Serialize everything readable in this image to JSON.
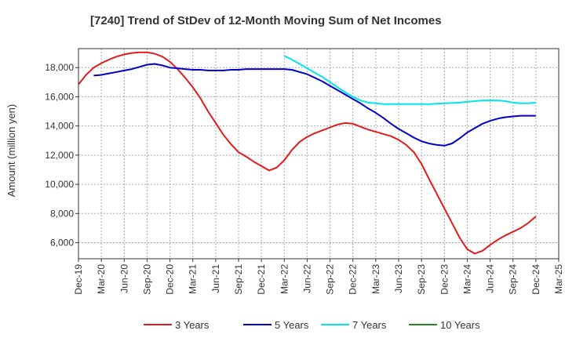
{
  "chart_data": {
    "type": "line",
    "title": "[7240]  Trend of StDev of 12-Month Moving Sum of Net Incomes",
    "ylabel": "Amount (million yen)",
    "xlabel": "",
    "ylim": [
      4900,
      19300
    ],
    "yticks": [
      6000,
      8000,
      10000,
      12000,
      14000,
      16000,
      18000
    ],
    "ytick_labels": [
      "6,000",
      "8,000",
      "10,000",
      "12,000",
      "14,000",
      "16,000",
      "18,000"
    ],
    "x_tick_labels": [
      "Dec-19",
      "Mar-20",
      "Jun-20",
      "Sep-20",
      "Dec-20",
      "Mar-21",
      "Jun-21",
      "Sep-21",
      "Dec-21",
      "Mar-22",
      "Jun-22",
      "Sep-22",
      "Dec-22",
      "Mar-23",
      "Jun-23",
      "Sep-23",
      "Dec-23",
      "Mar-24",
      "Jun-24",
      "Sep-24",
      "Dec-24",
      "Mar-25"
    ],
    "grid": true,
    "legend_position": "bottom",
    "series": [
      {
        "name": "3 Years",
        "color": "#e31a1c",
        "x": [
          "Dec-19",
          "Jan-20",
          "Feb-20",
          "Mar-20",
          "Apr-20",
          "May-20",
          "Jun-20",
          "Jul-20",
          "Aug-20",
          "Sep-20",
          "Oct-20",
          "Nov-20",
          "Dec-20",
          "Jan-21",
          "Feb-21",
          "Mar-21",
          "Apr-21",
          "May-21",
          "Jun-21",
          "Jul-21",
          "Aug-21",
          "Sep-21",
          "Oct-21",
          "Nov-21",
          "Dec-21",
          "Jan-22",
          "Feb-22",
          "Mar-22",
          "Apr-22",
          "May-22",
          "Jun-22",
          "Jul-22",
          "Aug-22",
          "Sep-22",
          "Oct-22",
          "Nov-22",
          "Dec-22",
          "Jan-23",
          "Feb-23",
          "Mar-23",
          "Apr-23",
          "May-23",
          "Jun-23",
          "Jul-23",
          "Aug-23",
          "Sep-23",
          "Oct-23",
          "Nov-23",
          "Dec-23",
          "Jan-24",
          "Feb-24",
          "Mar-24",
          "Apr-24",
          "May-24",
          "Jun-24",
          "Jul-24",
          "Aug-24",
          "Sep-24",
          "Oct-24",
          "Nov-24",
          "Dec-24"
        ],
        "values": [
          16850,
          17500,
          18000,
          18300,
          18550,
          18750,
          18900,
          19000,
          19050,
          19050,
          18950,
          18750,
          18400,
          17900,
          17300,
          16650,
          15900,
          15000,
          14200,
          13400,
          12750,
          12200,
          11900,
          11550,
          11250,
          10950,
          11150,
          11650,
          12350,
          12900,
          13250,
          13500,
          13700,
          13900,
          14100,
          14200,
          14150,
          13950,
          13750,
          13600,
          13450,
          13300,
          13050,
          12700,
          12200,
          11400,
          10350,
          9350,
          8350,
          7350,
          6350,
          5550,
          5250,
          5450,
          5850,
          6200,
          6500,
          6750,
          7000,
          7350,
          7800
        ]
      },
      {
        "name": "5 Years",
        "color": "#0000cc",
        "x": [
          "Dec-19",
          "Jan-20",
          "Feb-20",
          "Mar-20",
          "Apr-20",
          "May-20",
          "Jun-20",
          "Jul-20",
          "Aug-20",
          "Sep-20",
          "Oct-20",
          "Nov-20",
          "Dec-20",
          "Jan-21",
          "Feb-21",
          "Mar-21",
          "Apr-21",
          "May-21",
          "Jun-21",
          "Jul-21",
          "Aug-21",
          "Sep-21",
          "Oct-21",
          "Nov-21",
          "Dec-21",
          "Jan-22",
          "Feb-22",
          "Mar-22",
          "Apr-22",
          "May-22",
          "Jun-22",
          "Jul-22",
          "Aug-22",
          "Sep-22",
          "Oct-22",
          "Nov-22",
          "Dec-22",
          "Jan-23",
          "Feb-23",
          "Mar-23",
          "Apr-23",
          "May-23",
          "Jun-23",
          "Jul-23",
          "Aug-23",
          "Sep-23",
          "Oct-23",
          "Nov-23",
          "Dec-23",
          "Jan-24",
          "Feb-24",
          "Mar-24",
          "Apr-24",
          "May-24",
          "Jun-24",
          "Jul-24",
          "Aug-24",
          "Sep-24",
          "Oct-24",
          "Nov-24",
          "Dec-24"
        ],
        "values": [
          null,
          null,
          17450,
          17500,
          17600,
          17700,
          17800,
          17900,
          18050,
          18200,
          18250,
          18150,
          18000,
          17950,
          17900,
          17850,
          17850,
          17800,
          17800,
          17800,
          17850,
          17850,
          17900,
          17900,
          17900,
          17900,
          17900,
          17900,
          17850,
          17700,
          17550,
          17300,
          17050,
          16750,
          16450,
          16150,
          15850,
          15550,
          15200,
          14900,
          14550,
          14150,
          13800,
          13500,
          13200,
          12950,
          12800,
          12700,
          12650,
          12800,
          13150,
          13550,
          13850,
          14150,
          14350,
          14500,
          14600,
          14650,
          14700,
          14700,
          14700
        ]
      },
      {
        "name": "7 Years",
        "color": "#00e5ee",
        "x": [
          "Dec-19",
          "Jan-20",
          "Feb-20",
          "Mar-20",
          "Apr-20",
          "May-20",
          "Jun-20",
          "Jul-20",
          "Aug-20",
          "Sep-20",
          "Oct-20",
          "Nov-20",
          "Dec-20",
          "Jan-21",
          "Feb-21",
          "Mar-21",
          "Apr-21",
          "May-21",
          "Jun-21",
          "Jul-21",
          "Aug-21",
          "Sep-21",
          "Oct-21",
          "Nov-21",
          "Dec-21",
          "Jan-22",
          "Feb-22",
          "Mar-22",
          "Apr-22",
          "May-22",
          "Jun-22",
          "Jul-22",
          "Aug-22",
          "Sep-22",
          "Oct-22",
          "Nov-22",
          "Dec-22",
          "Jan-23",
          "Feb-23",
          "Mar-23",
          "Apr-23",
          "May-23",
          "Jun-23",
          "Jul-23",
          "Aug-23",
          "Sep-23",
          "Oct-23",
          "Nov-23",
          "Dec-23",
          "Jan-24",
          "Feb-24",
          "Mar-24",
          "Apr-24",
          "May-24",
          "Jun-24",
          "Jul-24",
          "Aug-24",
          "Sep-24",
          "Oct-24",
          "Nov-24",
          "Dec-24"
        ],
        "values": [
          null,
          null,
          null,
          null,
          null,
          null,
          null,
          null,
          null,
          null,
          null,
          null,
          null,
          null,
          null,
          null,
          null,
          null,
          null,
          null,
          null,
          null,
          null,
          null,
          null,
          null,
          null,
          18800,
          18550,
          18250,
          17950,
          17650,
          17350,
          17000,
          16650,
          16300,
          16000,
          15750,
          15600,
          15550,
          15500,
          15500,
          15500,
          15500,
          15500,
          15500,
          15500,
          15520,
          15550,
          15570,
          15600,
          15650,
          15700,
          15750,
          15750,
          15750,
          15700,
          15600,
          15550,
          15550,
          15600
        ]
      },
      {
        "name": "10 Years",
        "color": "#228b22",
        "x": [],
        "values": []
      }
    ]
  }
}
